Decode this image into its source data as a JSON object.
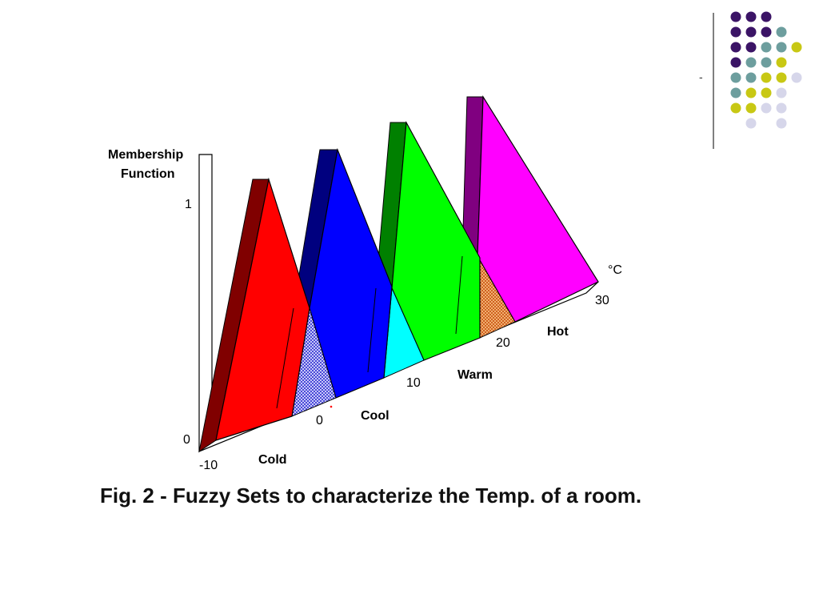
{
  "decoration": {
    "dash_text": "-",
    "dot_colors": {
      "purple": "#3b1466",
      "teal": "#6d9e9e",
      "yellow": "#c8c814",
      "lavender": "#d6d6ea"
    },
    "dot_grid": [
      [
        "purple",
        "purple",
        "purple",
        "",
        "",
        ""
      ],
      [
        "purple",
        "purple",
        "purple",
        "teal",
        "",
        ""
      ],
      [
        "purple",
        "purple",
        "teal",
        "teal",
        "yellow",
        ""
      ],
      [
        "purple",
        "teal",
        "teal",
        "yellow",
        "",
        ""
      ],
      [
        "teal",
        "teal",
        "yellow",
        "yellow",
        "lavender",
        ""
      ],
      [
        "teal",
        "yellow",
        "yellow",
        "lavender",
        "",
        ""
      ],
      [
        "yellow",
        "yellow",
        "lavender",
        "lavender",
        "",
        ""
      ],
      [
        "",
        "lavender",
        "",
        "lavender",
        "",
        ""
      ]
    ]
  },
  "figure": {
    "y_axis_title_line1": "Membership",
    "y_axis_title_line2": "Function",
    "y_tick_top": "1",
    "y_tick_bottom": "0",
    "x_unit": "°C",
    "x_ticks": [
      "-10",
      "0",
      "10",
      "20",
      "30"
    ],
    "set_labels": [
      "Cold",
      "Cool",
      "Warm",
      "Hot"
    ],
    "sets": [
      {
        "name": "Cold",
        "face": "#ff0000",
        "side": "#800000"
      },
      {
        "name": "Cool",
        "face": "#0000ff",
        "side": "#00007f"
      },
      {
        "name": "Warm",
        "face": "#00ff00",
        "side": "#008000"
      },
      {
        "name": "Hot",
        "face": "#ff00ff",
        "side": "#800080"
      }
    ],
    "overlap_colors": [
      "#8a8ae6",
      "#00ffff",
      "#e08040"
    ]
  },
  "caption": "Fig. 2 - Fuzzy Sets to characterize the Temp. of a room."
}
